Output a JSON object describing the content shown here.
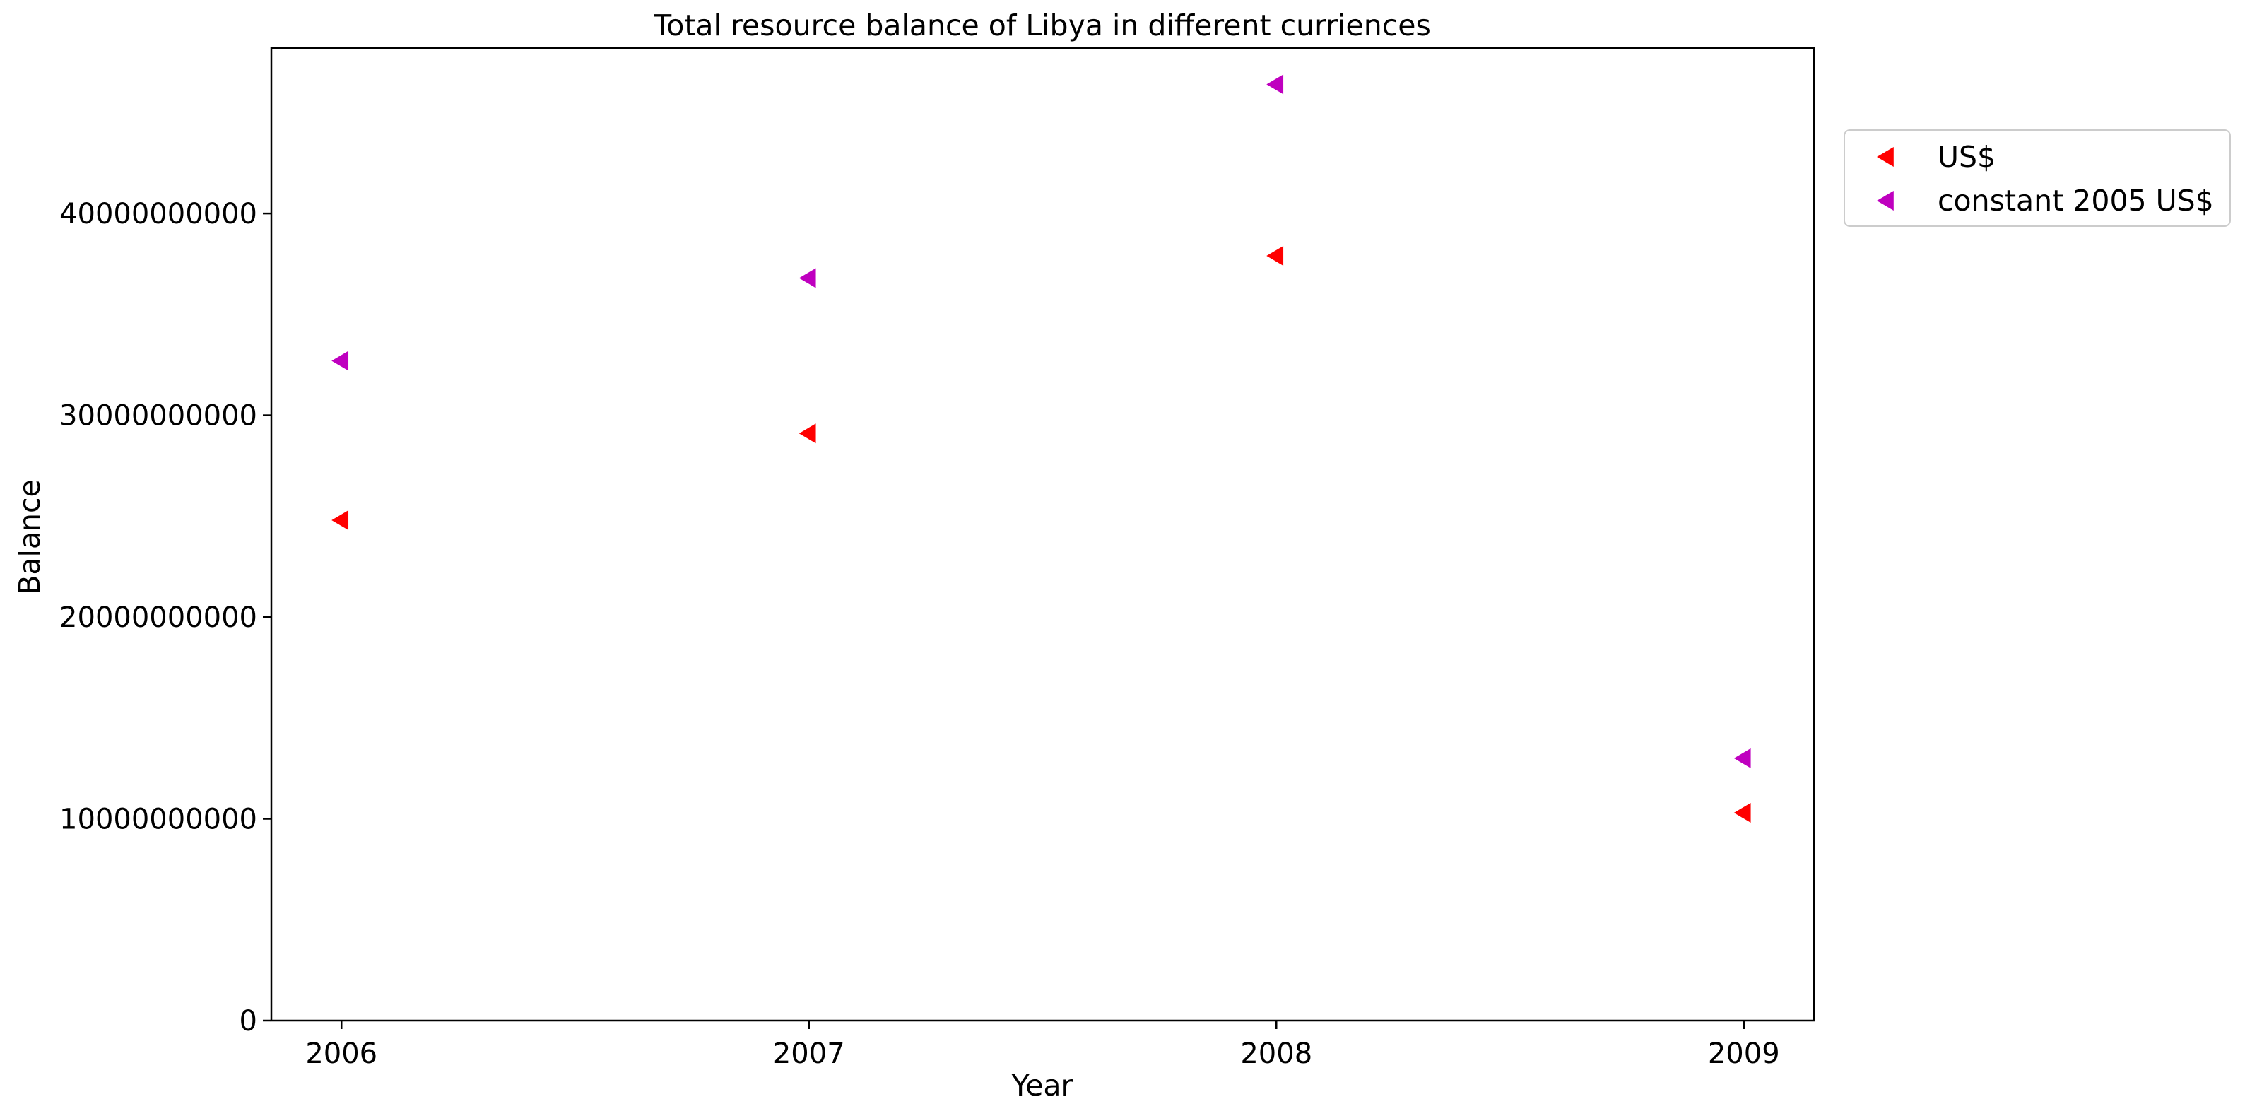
{
  "chart_data": {
    "type": "scatter",
    "title": "Total resource balance of Libya in different curriences",
    "xlabel": "Year",
    "ylabel": "Balance",
    "x": [
      2006,
      2007,
      2008,
      2009
    ],
    "x_ticks": [
      "2006",
      "2007",
      "2008",
      "2009"
    ],
    "xlim": [
      2005.85,
      2009.15
    ],
    "ylim": [
      0,
      48200000000
    ],
    "y_ticks": [
      0,
      10000000000,
      20000000000,
      30000000000,
      40000000000
    ],
    "y_tick_labels": [
      "0",
      "10000000000",
      "20000000000",
      "30000000000",
      "40000000000"
    ],
    "grid": false,
    "legend_position": "outside-top-right",
    "marker": "triangle-left",
    "series": [
      {
        "name": "US$",
        "color": "#ff0000",
        "values": [
          24800000000,
          29100000000,
          37900000000,
          10300000000
        ]
      },
      {
        "name": "constant 2005 US$",
        "color": "#bf00bf",
        "values": [
          32700000000,
          36800000000,
          46400000000,
          13000000000
        ]
      }
    ]
  }
}
